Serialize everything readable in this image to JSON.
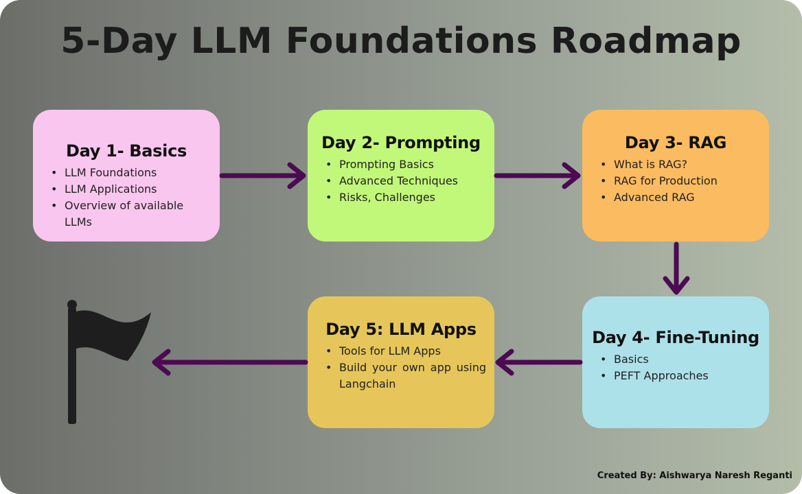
{
  "title": "5-Day LLM Foundations Roadmap",
  "colors": {
    "arrow": "#4b0a52",
    "day1": "#f9c6ef",
    "day2": "#c2f87a",
    "day3": "#fbbb60",
    "day4": "#ade1ea",
    "day5": "#e6c65a",
    "flag": "#1e1e1e"
  },
  "days": [
    {
      "title": "Day 1- Basics",
      "items": [
        "LLM Foundations",
        "LLM Applications",
        "Overview of available LLMs"
      ]
    },
    {
      "title": "Day 2- Prompting",
      "items": [
        "Prompting Basics",
        "Advanced Techniques",
        "Risks, Challenges"
      ]
    },
    {
      "title": "Day 3- RAG",
      "items": [
        "What is RAG?",
        "RAG for Production",
        "Advanced RAG"
      ]
    },
    {
      "title": "Day 4- Fine-Tuning",
      "items": [
        "Basics",
        "PEFT Approaches"
      ]
    },
    {
      "title": "Day 5: LLM Apps",
      "items": [
        "Tools for LLM Apps",
        "Build your own app using Langchain"
      ]
    }
  ],
  "finish_icon": "flag-icon",
  "credit": "Created By: Aishwarya Naresh Reganti"
}
